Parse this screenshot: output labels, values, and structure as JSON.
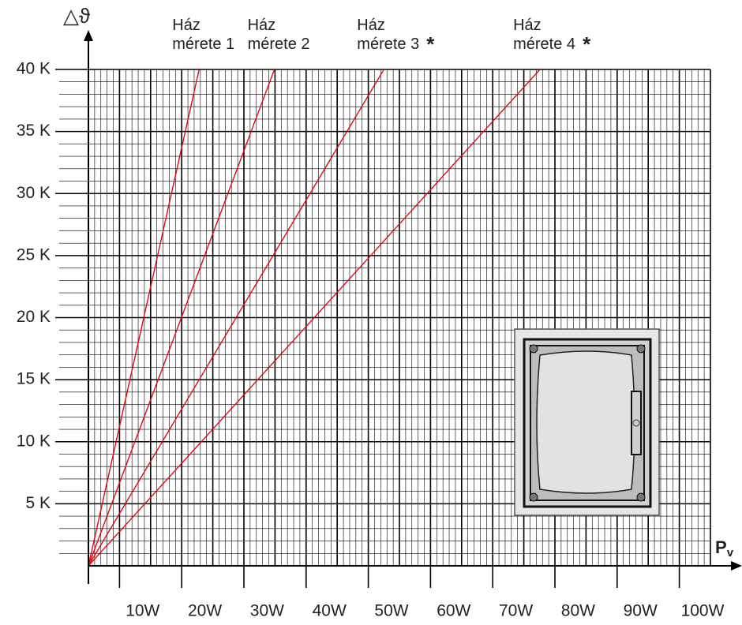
{
  "chart_data": {
    "type": "line",
    "y_label": "△ϑ",
    "x_label": "P",
    "x_label_sub": "v",
    "xlim": [
      0,
      100
    ],
    "ylim": [
      0,
      40
    ],
    "xticks": [
      {
        "value": 10,
        "label": "10W"
      },
      {
        "value": 20,
        "label": "20W"
      },
      {
        "value": 30,
        "label": "30W"
      },
      {
        "value": 40,
        "label": "40W"
      },
      {
        "value": 50,
        "label": "50W"
      },
      {
        "value": 60,
        "label": "60W"
      },
      {
        "value": 70,
        "label": "70W"
      },
      {
        "value": 80,
        "label": "80W"
      },
      {
        "value": 90,
        "label": "90W"
      },
      {
        "value": 100,
        "label": "100W"
      }
    ],
    "yticks": [
      {
        "value": 5,
        "label": "5 K"
      },
      {
        "value": 10,
        "label": "10 K"
      },
      {
        "value": 15,
        "label": "15 K"
      },
      {
        "value": 20,
        "label": "20 K"
      },
      {
        "value": 25,
        "label": "25 K"
      },
      {
        "value": 30,
        "label": "30 K"
      },
      {
        "value": 35,
        "label": "35 K"
      },
      {
        "value": 40,
        "label": "40 K"
      }
    ],
    "grid": true,
    "series": [
      {
        "name": "Ház mérete 1",
        "color": "#e30613",
        "x": [
          0,
          17.8
        ],
        "values": [
          0,
          40
        ]
      },
      {
        "name": "Ház mérete 2",
        "color": "#e30613",
        "x": [
          0,
          29.9
        ],
        "values": [
          0,
          40
        ]
      },
      {
        "name": "Ház mérete 3",
        "marker": "*",
        "color": "#e30613",
        "x": [
          0,
          47.5
        ],
        "values": [
          0,
          40
        ]
      },
      {
        "name": "Ház mérete 4",
        "marker": "*",
        "color": "#e30613",
        "x": [
          0,
          72.6
        ],
        "values": [
          0,
          40
        ]
      }
    ]
  }
}
